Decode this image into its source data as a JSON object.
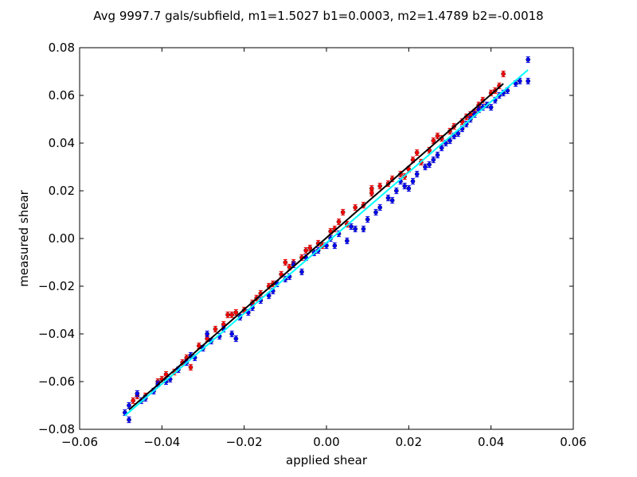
{
  "chart_data": {
    "type": "scatter",
    "title": "Avg 9997.7 gals/subfield, m1=1.5027 b1=0.0003, m2=1.4789 b2=-0.0018",
    "xlabel": "applied shear",
    "ylabel": "measured shear",
    "xlim": [
      -0.06,
      0.06
    ],
    "ylim": [
      -0.08,
      0.08
    ],
    "xticks": [
      -0.06,
      -0.04,
      -0.02,
      0.0,
      0.02,
      0.04,
      0.06
    ],
    "xtick_labels": [
      "−0.06",
      "−0.04",
      "−0.02",
      "0.00",
      "0.02",
      "0.04",
      "0.06"
    ],
    "yticks": [
      -0.08,
      -0.06,
      -0.04,
      -0.02,
      0.0,
      0.02,
      0.04,
      0.06,
      0.08
    ],
    "ytick_labels": [
      "−0.08",
      "−0.06",
      "−0.04",
      "−0.02",
      "0.00",
      "0.02",
      "0.04",
      "0.06",
      "0.08"
    ],
    "grid": false,
    "series": [
      {
        "color": "#ff0000",
        "marker": "point-with-errorbar",
        "error": 0.0012,
        "points": [
          [
            -0.047,
            -0.068
          ],
          [
            -0.046,
            -0.066
          ],
          [
            -0.044,
            -0.066
          ],
          [
            -0.041,
            -0.06
          ],
          [
            -0.04,
            -0.059
          ],
          [
            -0.039,
            -0.057
          ],
          [
            -0.037,
            -0.056
          ],
          [
            -0.035,
            -0.052
          ],
          [
            -0.034,
            -0.05
          ],
          [
            -0.033,
            -0.054
          ],
          [
            -0.031,
            -0.045
          ],
          [
            -0.029,
            -0.042
          ],
          [
            -0.027,
            -0.038
          ],
          [
            -0.025,
            -0.036
          ],
          [
            -0.024,
            -0.032
          ],
          [
            -0.023,
            -0.032
          ],
          [
            -0.022,
            -0.031
          ],
          [
            -0.02,
            -0.03
          ],
          [
            -0.018,
            -0.027
          ],
          [
            -0.017,
            -0.025
          ],
          [
            -0.016,
            -0.023
          ],
          [
            -0.014,
            -0.02
          ],
          [
            -0.013,
            -0.019
          ],
          [
            -0.011,
            -0.015
          ],
          [
            -0.01,
            -0.01
          ],
          [
            -0.009,
            -0.012
          ],
          [
            -0.008,
            -0.01
          ],
          [
            -0.006,
            -0.008
          ],
          [
            -0.005,
            -0.005
          ],
          [
            -0.004,
            -0.004
          ],
          [
            -0.002,
            -0.002
          ],
          [
            -0.001,
            -0.003
          ],
          [
            0.001,
            0.003
          ],
          [
            0.002,
            0.004
          ],
          [
            0.003,
            0.007
          ],
          [
            0.004,
            0.011
          ],
          [
            0.005,
            0.006
          ],
          [
            0.007,
            0.013
          ],
          [
            0.009,
            0.014
          ],
          [
            0.011,
            0.019
          ],
          [
            0.011,
            0.021
          ],
          [
            0.013,
            0.022
          ],
          [
            0.015,
            0.023
          ],
          [
            0.016,
            0.025
          ],
          [
            0.018,
            0.027
          ],
          [
            0.019,
            0.026
          ],
          [
            0.02,
            0.029
          ],
          [
            0.021,
            0.033
          ],
          [
            0.022,
            0.036
          ],
          [
            0.023,
            0.032
          ],
          [
            0.025,
            0.037
          ],
          [
            0.026,
            0.041
          ],
          [
            0.027,
            0.043
          ],
          [
            0.028,
            0.042
          ],
          [
            0.03,
            0.045
          ],
          [
            0.031,
            0.047
          ],
          [
            0.033,
            0.049
          ],
          [
            0.034,
            0.051
          ],
          [
            0.035,
            0.052
          ],
          [
            0.036,
            0.053
          ],
          [
            0.037,
            0.056
          ],
          [
            0.038,
            0.058
          ],
          [
            0.04,
            0.061
          ],
          [
            0.041,
            0.062
          ],
          [
            0.042,
            0.064
          ],
          [
            0.043,
            0.069
          ]
        ]
      },
      {
        "color": "#0000ff",
        "marker": "point-with-errorbar",
        "error": 0.0012,
        "points": [
          [
            -0.049,
            -0.073
          ],
          [
            -0.048,
            -0.076
          ],
          [
            -0.048,
            -0.07
          ],
          [
            -0.046,
            -0.065
          ],
          [
            -0.045,
            -0.068
          ],
          [
            -0.044,
            -0.067
          ],
          [
            -0.042,
            -0.064
          ],
          [
            -0.041,
            -0.061
          ],
          [
            -0.039,
            -0.06
          ],
          [
            -0.038,
            -0.059
          ],
          [
            -0.036,
            -0.055
          ],
          [
            -0.034,
            -0.052
          ],
          [
            -0.033,
            -0.049
          ],
          [
            -0.032,
            -0.05
          ],
          [
            -0.03,
            -0.046
          ],
          [
            -0.029,
            -0.04
          ],
          [
            -0.028,
            -0.043
          ],
          [
            -0.026,
            -0.041
          ],
          [
            -0.025,
            -0.038
          ],
          [
            -0.023,
            -0.04
          ],
          [
            -0.022,
            -0.042
          ],
          [
            -0.021,
            -0.033
          ],
          [
            -0.019,
            -0.031
          ],
          [
            -0.018,
            -0.029
          ],
          [
            -0.016,
            -0.026
          ],
          [
            -0.014,
            -0.024
          ],
          [
            -0.013,
            -0.022
          ],
          [
            -0.012,
            -0.019
          ],
          [
            -0.01,
            -0.017
          ],
          [
            -0.009,
            -0.016
          ],
          [
            -0.008,
            -0.011
          ],
          [
            -0.006,
            -0.014
          ],
          [
            -0.005,
            -0.008
          ],
          [
            -0.003,
            -0.006
          ],
          [
            -0.002,
            -0.005
          ],
          [
            0.0,
            -0.003
          ],
          [
            0.001,
            0.0
          ],
          [
            0.002,
            -0.003
          ],
          [
            0.003,
            0.002
          ],
          [
            0.005,
            -0.001
          ],
          [
            0.006,
            0.005
          ],
          [
            0.007,
            0.004
          ],
          [
            0.009,
            0.004
          ],
          [
            0.01,
            0.008
          ],
          [
            0.012,
            0.011
          ],
          [
            0.013,
            0.013
          ],
          [
            0.015,
            0.017
          ],
          [
            0.016,
            0.016
          ],
          [
            0.017,
            0.02
          ],
          [
            0.018,
            0.024
          ],
          [
            0.019,
            0.022
          ],
          [
            0.02,
            0.021
          ],
          [
            0.021,
            0.024
          ],
          [
            0.022,
            0.027
          ],
          [
            0.024,
            0.03
          ],
          [
            0.025,
            0.031
          ],
          [
            0.026,
            0.033
          ],
          [
            0.027,
            0.035
          ],
          [
            0.028,
            0.038
          ],
          [
            0.029,
            0.04
          ],
          [
            0.03,
            0.041
          ],
          [
            0.031,
            0.043
          ],
          [
            0.032,
            0.044
          ],
          [
            0.033,
            0.046
          ],
          [
            0.034,
            0.048
          ],
          [
            0.035,
            0.05
          ],
          [
            0.036,
            0.052
          ],
          [
            0.037,
            0.054
          ],
          [
            0.038,
            0.055
          ],
          [
            0.039,
            0.056
          ],
          [
            0.04,
            0.055
          ],
          [
            0.041,
            0.058
          ],
          [
            0.042,
            0.06
          ],
          [
            0.043,
            0.061
          ],
          [
            0.044,
            0.062
          ],
          [
            0.046,
            0.065
          ],
          [
            0.047,
            0.066
          ],
          [
            0.049,
            0.066
          ],
          [
            0.049,
            0.075
          ]
        ]
      }
    ],
    "fit_lines": [
      {
        "color": "#000000",
        "x": [
          -0.048,
          0.043
        ],
        "y": [
          -0.0718,
          0.0649
        ]
      },
      {
        "color": "#00ffff",
        "x": [
          -0.049,
          0.049
        ],
        "y": [
          -0.0743,
          0.0707
        ]
      }
    ]
  }
}
